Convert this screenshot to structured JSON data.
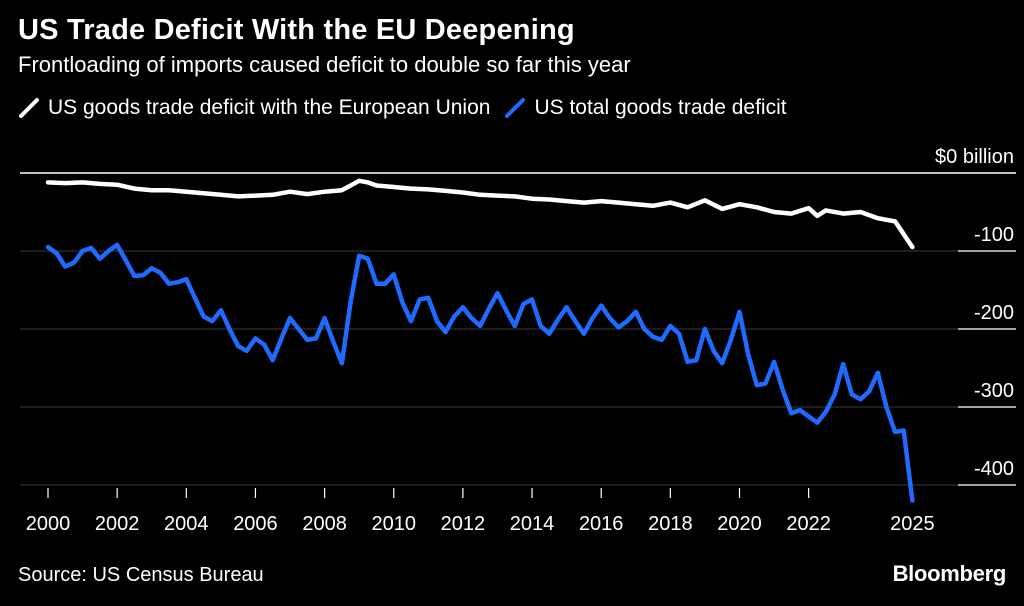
{
  "title": "US Trade Deficit With the EU Deepening",
  "subtitle": "Frontloading of imports caused deficit to double so far this year",
  "source": "Source: US Census Bureau",
  "brand": "Bloomberg",
  "chart_data": {
    "type": "line",
    "title": "US Trade Deficit With the EU Deepening",
    "subtitle": "Frontloading of imports caused deficit to double so far this year",
    "xlabel": "",
    "ylabel": "",
    "unit_label": "$0 billion",
    "xlim": [
      2000,
      2025.25
    ],
    "ylim": [
      -420,
      0
    ],
    "x_ticks": [
      2000,
      2002,
      2004,
      2006,
      2008,
      2010,
      2012,
      2014,
      2016,
      2018,
      2020,
      2022,
      2025
    ],
    "x_tick_labels": [
      "2000",
      "2002",
      "2004",
      "2006",
      "2008",
      "2010",
      "2012",
      "2014",
      "2016",
      "2018",
      "2020",
      "2022",
      "2025"
    ],
    "y_ticks": [
      -100,
      -200,
      -300,
      -400
    ],
    "y_tick_labels": [
      "-100",
      "-200",
      "-300",
      "-400"
    ],
    "grid": "horizontal",
    "legend_position": "top-left",
    "series": [
      {
        "name": "US goods trade deficit with the European Union",
        "color": "#ffffff",
        "points": [
          [
            2000,
            -12
          ],
          [
            2000.5,
            -13
          ],
          [
            2001,
            -12
          ],
          [
            2001.5,
            -14
          ],
          [
            2002,
            -15
          ],
          [
            2002.5,
            -20
          ],
          [
            2003,
            -22
          ],
          [
            2003.5,
            -22
          ],
          [
            2004,
            -24
          ],
          [
            2004.5,
            -26
          ],
          [
            2005,
            -28
          ],
          [
            2005.5,
            -30
          ],
          [
            2006,
            -29
          ],
          [
            2006.5,
            -28
          ],
          [
            2007,
            -24
          ],
          [
            2007.5,
            -27
          ],
          [
            2008,
            -24
          ],
          [
            2008.5,
            -22
          ],
          [
            2009,
            -10
          ],
          [
            2009.25,
            -12
          ],
          [
            2009.5,
            -16
          ],
          [
            2010,
            -18
          ],
          [
            2010.5,
            -20
          ],
          [
            2011,
            -21
          ],
          [
            2011.5,
            -23
          ],
          [
            2012,
            -25
          ],
          [
            2012.5,
            -28
          ],
          [
            2013,
            -29
          ],
          [
            2013.5,
            -30
          ],
          [
            2014,
            -33
          ],
          [
            2014.5,
            -34
          ],
          [
            2015,
            -36
          ],
          [
            2015.5,
            -38
          ],
          [
            2016,
            -36
          ],
          [
            2016.5,
            -38
          ],
          [
            2017,
            -40
          ],
          [
            2017.5,
            -42
          ],
          [
            2018,
            -38
          ],
          [
            2018.5,
            -44
          ],
          [
            2019,
            -35
          ],
          [
            2019.5,
            -46
          ],
          [
            2020,
            -40
          ],
          [
            2020.5,
            -44
          ],
          [
            2021,
            -50
          ],
          [
            2021.5,
            -52
          ],
          [
            2022,
            -45
          ],
          [
            2022.25,
            -55
          ],
          [
            2022.5,
            -48
          ],
          [
            2023,
            -52
          ],
          [
            2023.5,
            -50
          ],
          [
            2024,
            -58
          ],
          [
            2024.25,
            -60
          ],
          [
            2024.5,
            -62
          ],
          [
            2025,
            -95
          ]
        ]
      },
      {
        "name": "US total goods trade deficit",
        "color": "#1f6bff",
        "points": [
          [
            2000,
            -95
          ],
          [
            2000.25,
            -103
          ],
          [
            2000.5,
            -120
          ],
          [
            2000.75,
            -115
          ],
          [
            2001,
            -100
          ],
          [
            2001.25,
            -96
          ],
          [
            2001.5,
            -110
          ],
          [
            2001.75,
            -100
          ],
          [
            2002,
            -92
          ],
          [
            2002.25,
            -112
          ],
          [
            2002.5,
            -132
          ],
          [
            2002.75,
            -131
          ],
          [
            2003,
            -122
          ],
          [
            2003.25,
            -128
          ],
          [
            2003.5,
            -142
          ],
          [
            2003.75,
            -140
          ],
          [
            2004,
            -136
          ],
          [
            2004.25,
            -160
          ],
          [
            2004.5,
            -184
          ],
          [
            2004.75,
            -190
          ],
          [
            2005,
            -176
          ],
          [
            2005.25,
            -200
          ],
          [
            2005.5,
            -222
          ],
          [
            2005.75,
            -228
          ],
          [
            2006,
            -212
          ],
          [
            2006.25,
            -220
          ],
          [
            2006.5,
            -240
          ],
          [
            2006.75,
            -212
          ],
          [
            2007,
            -186
          ],
          [
            2007.25,
            -200
          ],
          [
            2007.5,
            -214
          ],
          [
            2007.75,
            -212
          ],
          [
            2008,
            -186
          ],
          [
            2008.25,
            -216
          ],
          [
            2008.5,
            -244
          ],
          [
            2008.75,
            -166
          ],
          [
            2009,
            -106
          ],
          [
            2009.25,
            -110
          ],
          [
            2009.5,
            -142
          ],
          [
            2009.75,
            -142
          ],
          [
            2010,
            -130
          ],
          [
            2010.25,
            -166
          ],
          [
            2010.5,
            -190
          ],
          [
            2010.75,
            -162
          ],
          [
            2011,
            -160
          ],
          [
            2011.25,
            -190
          ],
          [
            2011.5,
            -204
          ],
          [
            2011.75,
            -184
          ],
          [
            2012,
            -172
          ],
          [
            2012.25,
            -186
          ],
          [
            2012.5,
            -196
          ],
          [
            2012.75,
            -174
          ],
          [
            2013,
            -154
          ],
          [
            2013.25,
            -176
          ],
          [
            2013.5,
            -196
          ],
          [
            2013.75,
            -168
          ],
          [
            2014,
            -162
          ],
          [
            2014.25,
            -196
          ],
          [
            2014.5,
            -206
          ],
          [
            2014.75,
            -188
          ],
          [
            2015,
            -172
          ],
          [
            2015.25,
            -190
          ],
          [
            2015.5,
            -206
          ],
          [
            2015.75,
            -186
          ],
          [
            2016,
            -170
          ],
          [
            2016.25,
            -186
          ],
          [
            2016.5,
            -198
          ],
          [
            2016.75,
            -190
          ],
          [
            2017,
            -178
          ],
          [
            2017.25,
            -200
          ],
          [
            2017.5,
            -210
          ],
          [
            2017.75,
            -214
          ],
          [
            2018,
            -196
          ],
          [
            2018.25,
            -206
          ],
          [
            2018.5,
            -242
          ],
          [
            2018.75,
            -240
          ],
          [
            2019,
            -200
          ],
          [
            2019.25,
            -228
          ],
          [
            2019.5,
            -244
          ],
          [
            2019.75,
            -214
          ],
          [
            2020,
            -178
          ],
          [
            2020.25,
            -232
          ],
          [
            2020.5,
            -272
          ],
          [
            2020.75,
            -270
          ],
          [
            2021,
            -242
          ],
          [
            2021.25,
            -278
          ],
          [
            2021.5,
            -308
          ],
          [
            2021.75,
            -304
          ],
          [
            2022,
            -312
          ],
          [
            2022.25,
            -320
          ],
          [
            2022.5,
            -306
          ],
          [
            2022.75,
            -284
          ],
          [
            2023,
            -245
          ],
          [
            2023.25,
            -284
          ],
          [
            2023.5,
            -290
          ],
          [
            2023.75,
            -280
          ],
          [
            2024,
            -256
          ],
          [
            2024.25,
            -300
          ],
          [
            2024.5,
            -332
          ],
          [
            2024.75,
            -330
          ],
          [
            2025,
            -420
          ]
        ]
      }
    ]
  }
}
